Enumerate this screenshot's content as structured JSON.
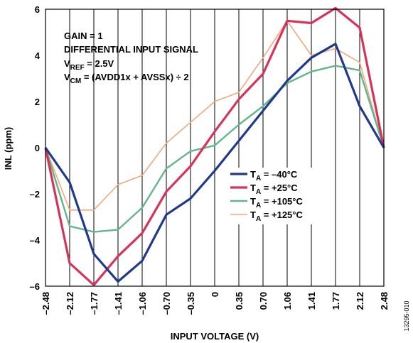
{
  "chart_data": {
    "type": "line",
    "xlabel": "INPUT VOLTAGE (V)",
    "ylabel": "INL (ppm)",
    "x": [
      -2.48,
      -2.12,
      -1.77,
      -1.41,
      -1.06,
      -0.7,
      -0.35,
      0,
      0.35,
      0.7,
      1.06,
      1.41,
      1.77,
      2.12,
      2.48
    ],
    "x_tick_labels": [
      "–2.48",
      "–2.12",
      "–1.77",
      "–1.41",
      "–1.06",
      "–0.70",
      "–0.35",
      "0",
      "0.35",
      "0.70",
      "1.06",
      "1.41",
      "1.77",
      "2.12",
      "2.48"
    ],
    "y_ticks": [
      -6,
      -4,
      -2,
      0,
      2,
      4,
      6
    ],
    "y_tick_labels": [
      "–6",
      "–4",
      "–2",
      "0",
      "2",
      "4",
      "6"
    ],
    "ylim": [
      -6,
      6
    ],
    "grid": "vertical lines at every x tick",
    "legend_position": "lower-right",
    "annotations": {
      "gain": "GAIN = 1",
      "signal": "DIFFERENTIAL INPUT SIGNAL",
      "vref_main": "V",
      "vref_sub": "REF",
      "vref_rest": " = 2.5V",
      "vcm_main": "V",
      "vcm_sub": "CM",
      "vcm_rest": " = (AVDD1x + AVSSx) ÷ 2"
    },
    "series": [
      {
        "name_main": "T",
        "name_sub": "A",
        "name_rest": " = –40°C",
        "color": "#1f3a8a",
        "values": [
          0,
          -1.5,
          -4.6,
          -5.8,
          -4.9,
          -2.9,
          -2.2,
          -1.0,
          0.3,
          1.6,
          2.9,
          3.9,
          4.5,
          1.8,
          0
        ]
      },
      {
        "name_main": "T",
        "name_sub": "A",
        "name_rest": " = +25°C",
        "color": "#d6335a",
        "values": [
          0,
          -5.0,
          -5.95,
          -4.7,
          -3.7,
          -1.9,
          -0.8,
          0.7,
          2.1,
          3.2,
          5.5,
          5.4,
          6.05,
          5.2,
          0
        ]
      },
      {
        "name_main": "T",
        "name_sub": "A",
        "name_rest": " = +105°C",
        "color": "#64b58c",
        "values": [
          0,
          -3.4,
          -3.65,
          -3.55,
          -2.6,
          -0.9,
          -0.15,
          0.1,
          1.0,
          1.8,
          2.8,
          3.3,
          3.55,
          3.35,
          0
        ]
      },
      {
        "name_main": "T",
        "name_sub": "A",
        "name_rest": " = +125°C",
        "color": "#f4a87c",
        "values": [
          0,
          -2.7,
          -2.7,
          -1.6,
          -1.2,
          0.2,
          1.1,
          2.0,
          2.4,
          3.9,
          5.5,
          4.0,
          4.3,
          3.7,
          0
        ]
      }
    ]
  },
  "figure_id": "13295-010"
}
